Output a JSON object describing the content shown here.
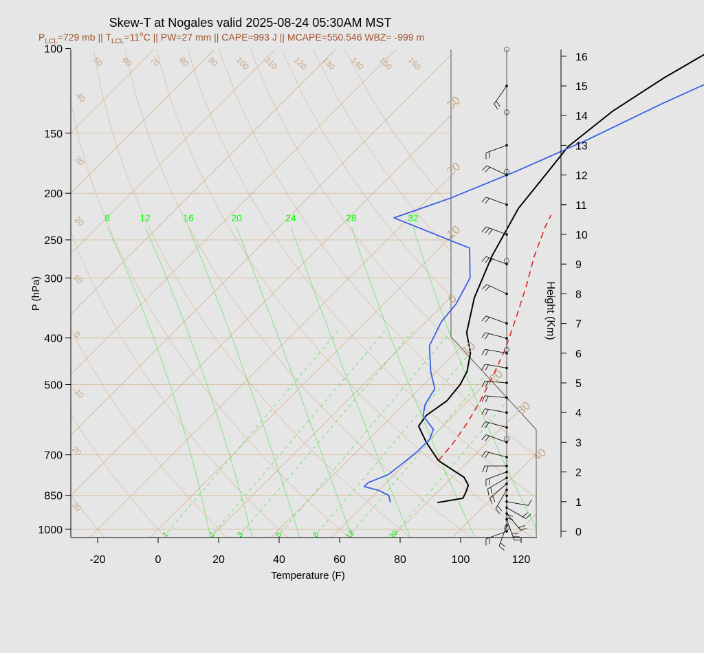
{
  "title": "Skew-T at Nogales valid 2025-08-24 05:30AM MST",
  "subtitle_parts": {
    "p_lcl_label": "P",
    "lcl_sub_1": "LCL",
    "p_lcl_value": "=729 mb || T",
    "lcl_sub_2": "LCL",
    "t_lcl_value": "=11",
    "degree": "o",
    "rest": "C || PW=27 mm || CAPE=993 J || MCAPE=550.546 WBZ= -999 m"
  },
  "colors": {
    "dewpoint": "#3a5fe0",
    "temperature": "#000000",
    "parcel": "#e02020",
    "isotherm": "#d2b48c",
    "mixing": "#6fe06f",
    "label_green": "#00ff00",
    "subtitle": "#a0522d"
  },
  "chart_data": {
    "type": "line",
    "title": "Skew-T at Nogales valid 2025-08-24 05:30AM MST",
    "xlabel": "Temperature (F)",
    "ylabel": "P (hPa)",
    "y2label": "Height (Km)",
    "xlim": [
      -28,
      125
    ],
    "ylim": [
      1000,
      100
    ],
    "x_ticks": [
      "-20",
      "0",
      "20",
      "40",
      "60",
      "80",
      "100",
      "120"
    ],
    "y_ticks": [
      "100",
      "150",
      "200",
      "250",
      "300",
      "400",
      "500",
      "700",
      "850",
      "1000"
    ],
    "height_ticks": [
      "0",
      "1",
      "2",
      "3",
      "4",
      "5",
      "6",
      "7",
      "8",
      "9",
      "10",
      "11",
      "12",
      "13",
      "14",
      "15",
      "16"
    ],
    "isotherm_labels": [
      "50",
      "60",
      "70",
      "80",
      "90",
      "100",
      "110",
      "120",
      "130",
      "140",
      "150",
      "160",
      "40",
      "30",
      "20",
      "10",
      "0",
      "-10",
      "20",
      "30"
    ],
    "right_temp_labels": [
      "30",
      "20",
      "10",
      "0",
      "10",
      "20",
      "30",
      "40"
    ],
    "wetbulb_labels": [
      "8",
      "12",
      "16",
      "20",
      "24",
      "28",
      "32"
    ],
    "mixing_labels": [
      "1",
      "2",
      "3",
      "5",
      "8",
      "12",
      "20"
    ],
    "series": [
      {
        "name": "Temperature",
        "points": [
          [
            83.5,
            880
          ],
          [
            90.5,
            862
          ],
          [
            89.5,
            838
          ],
          [
            88,
            810
          ],
          [
            84,
            780
          ],
          [
            70,
            720
          ],
          [
            60,
            660
          ],
          [
            52,
            610
          ],
          [
            51,
            580
          ],
          [
            53,
            540
          ],
          [
            52,
            500
          ],
          [
            50,
            470
          ],
          [
            45,
            430
          ],
          [
            37,
            390
          ],
          [
            28,
            330
          ],
          [
            20,
            270
          ],
          [
            13,
            215
          ],
          [
            11,
            185
          ],
          [
            9,
            160
          ],
          [
            12,
            135
          ],
          [
            18,
            115
          ],
          [
            25,
            100
          ]
        ]
      },
      {
        "name": "Dewpoint",
        "points": [
          [
            68,
            880
          ],
          [
            65,
            850
          ],
          [
            60,
            830
          ],
          [
            54,
            815
          ],
          [
            54,
            800
          ],
          [
            58,
            770
          ],
          [
            59,
            730
          ],
          [
            60,
            690
          ],
          [
            60,
            650
          ],
          [
            58,
            620
          ],
          [
            50,
            580
          ],
          [
            47,
            550
          ],
          [
            45,
            510
          ],
          [
            38,
            470
          ],
          [
            29,
            415
          ],
          [
            25,
            370
          ],
          [
            24,
            340
          ],
          [
            20,
            300
          ],
          [
            10,
            260
          ],
          [
            -25,
            225
          ],
          [
            -13,
            205
          ],
          [
            0,
            180
          ],
          [
            13,
            155
          ],
          [
            26,
            130
          ],
          [
            40,
            110
          ],
          [
            50,
            100
          ]
        ]
      },
      {
        "name": "Parcel",
        "points": [
          [
            70,
            720
          ],
          [
            69,
            660
          ],
          [
            67,
            600
          ],
          [
            64,
            540
          ],
          [
            60,
            480
          ],
          [
            55,
            420
          ],
          [
            48,
            360
          ],
          [
            41,
            310
          ],
          [
            34,
            270
          ],
          [
            28,
            235
          ],
          [
            26,
            222
          ]
        ]
      }
    ],
    "wind_levels_km": [
      0,
      0.2,
      0.4,
      0.6,
      0.8,
      1.0,
      1.2,
      1.4,
      1.6,
      1.8,
      2.0,
      2.2,
      2.5,
      3.0,
      3.5,
      4.0,
      4.5,
      5.0,
      5.5,
      6.0,
      6.5,
      7.0,
      8.0,
      9.0,
      10.0,
      11.0,
      12.0,
      13.0,
      15.0
    ],
    "wind_dir_deg": [
      250,
      200,
      160,
      140,
      120,
      100,
      180,
      210,
      230,
      240,
      250,
      270,
      285,
      290,
      285,
      280,
      275,
      275,
      280,
      280,
      285,
      290,
      295,
      290,
      290,
      290,
      295,
      250,
      215
    ],
    "wind_speed_kt": [
      15,
      20,
      25,
      20,
      15,
      10,
      20,
      20,
      15,
      15,
      15,
      15,
      15,
      20,
      20,
      20,
      20,
      20,
      20,
      20,
      20,
      20,
      20,
      25,
      25,
      20,
      20,
      20,
      20
    ]
  }
}
